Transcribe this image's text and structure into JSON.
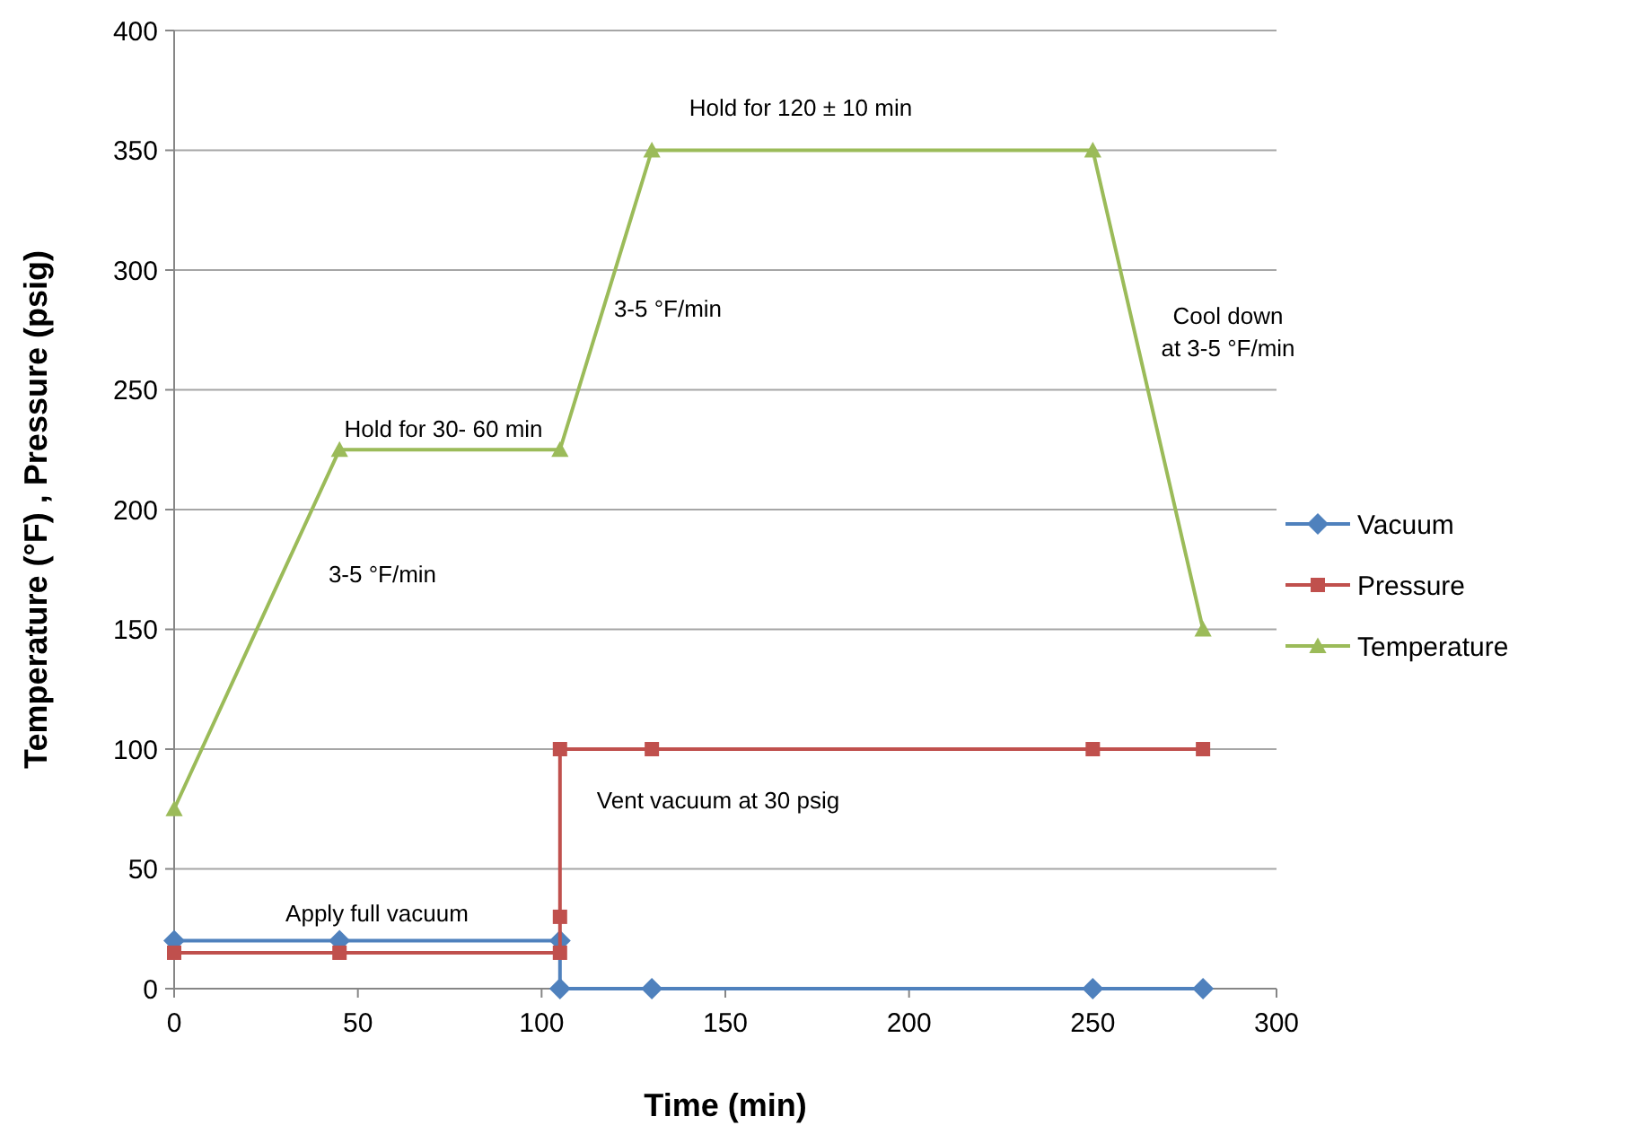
{
  "chart_data": {
    "type": "line",
    "xlabel": "Time (min)",
    "ylabel": "Temperature (°F) , Pressure (psig)",
    "xlim": [
      0,
      300
    ],
    "xticks": [
      0,
      50,
      100,
      150,
      200,
      250,
      300
    ],
    "ylim": [
      0,
      400
    ],
    "yticks": [
      0,
      50,
      100,
      150,
      200,
      250,
      300,
      350,
      400
    ],
    "grid": "y",
    "legend": "right",
    "series": [
      {
        "name": "Vacuum",
        "color": "#4f81bd",
        "marker": "diamond",
        "x": [
          0,
          45,
          105,
          105,
          130,
          250,
          280
        ],
        "values": [
          20,
          20,
          20,
          0,
          0,
          0,
          0
        ]
      },
      {
        "name": "Pressure",
        "color": "#c0504d",
        "marker": "square",
        "x": [
          0,
          45,
          105,
          105,
          105,
          130,
          250,
          280
        ],
        "values": [
          15,
          15,
          15,
          30,
          100,
          100,
          100,
          100
        ]
      },
      {
        "name": "Temperature",
        "color": "#9bbb59",
        "marker": "triangle",
        "x": [
          0,
          45,
          105,
          130,
          250,
          280
        ],
        "values": [
          75,
          225,
          225,
          350,
          350,
          150
        ]
      }
    ],
    "annotations": [
      "Apply full vacuum",
      "Hold for 30- 60 min",
      "3-5 °F/min",
      "3-5 °F/min",
      "Hold for 120 ± 10 min",
      "Cool down\nat 3-5 °F/min",
      "Vent vacuum at 30 psig"
    ]
  }
}
